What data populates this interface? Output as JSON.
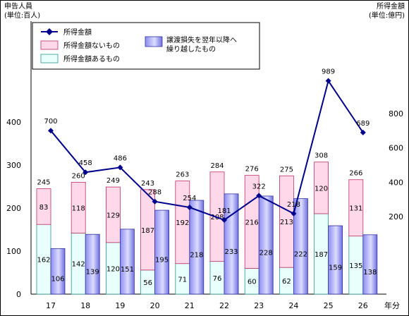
{
  "chart_data": {
    "type": "bar",
    "left_axis": {
      "title_line1": "申告人員",
      "title_line2": "(単位:百人)",
      "ticks": [
        "0",
        "100",
        "200",
        "300",
        "400"
      ],
      "ylim": [
        0,
        500
      ]
    },
    "right_axis": {
      "title_line1": "所得金額",
      "title_line2": "(単位:億円)",
      "ticks": [
        "200",
        "400",
        "600",
        "800"
      ],
      "ylim": [
        -250,
        1000
      ]
    },
    "x_axis_label": "年分",
    "categories": [
      "17",
      "18",
      "19",
      "20",
      "21",
      "22",
      "23",
      "24",
      "25",
      "26"
    ],
    "stacked_series": [
      {
        "name": "所得金額あるもの",
        "color": "#e9fffb",
        "values": [
          162,
          142,
          120,
          56,
          71,
          76,
          60,
          62,
          187,
          135
        ]
      },
      {
        "name": "所得金額ないもの",
        "color": "#ffd9ea",
        "values": [
          83,
          118,
          129,
          187,
          192,
          208,
          216,
          213,
          120,
          131
        ]
      }
    ],
    "stacked_totals": [
      245,
      260,
      249,
      243,
      263,
      284,
      276,
      275,
      308,
      266
    ],
    "bar_series": {
      "name": "譲渡損失を翌年以降へ繰り越したもの",
      "color": "#a8a8f4",
      "values": [
        106,
        139,
        151,
        195,
        218,
        233,
        228,
        222,
        159,
        138
      ]
    },
    "line_series": {
      "name": "所得金額",
      "color": "#00008b",
      "axis": "right",
      "values": [
        700,
        458,
        486,
        288,
        254,
        181,
        322,
        218,
        989,
        689
      ]
    }
  }
}
